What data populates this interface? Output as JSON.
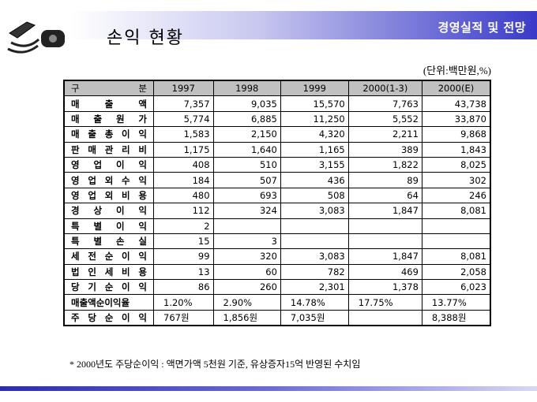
{
  "header": {
    "section": "경영실적 및 전망",
    "title": "손익 현황",
    "unit": "(단위:백만원,%)"
  },
  "table": {
    "header": [
      "구 분",
      "1997",
      "1998",
      "1999",
      "2000(1-3)",
      "2000(E)"
    ],
    "rows": [
      [
        "매 출 액",
        "7,357",
        "9,035",
        "15,570",
        "7,763",
        "43,738"
      ],
      [
        "매 출 원 가",
        "5,774",
        "6,885",
        "11,250",
        "5,552",
        "33,870"
      ],
      [
        "매 출 총 이 익",
        "1,583",
        "2,150",
        "4,320",
        "2,211",
        "9,868"
      ],
      [
        "판 매 관 리 비",
        "1,175",
        "1,640",
        "1,165",
        "389",
        "1,843"
      ],
      [
        "영 업 이 익",
        "408",
        "510",
        "3,155",
        "1,822",
        "8,025"
      ],
      [
        "영 업 외 수 익",
        "184",
        "507",
        "436",
        "89",
        "302"
      ],
      [
        "영 업 외 비 용",
        "480",
        "693",
        "508",
        "64",
        "246"
      ],
      [
        "경 상 이 익",
        "112",
        "324",
        "3,083",
        "1,847",
        "8,081"
      ],
      [
        "특 별 이 익",
        "2",
        null,
        null,
        null,
        null
      ],
      [
        "특 별 손 실",
        "15",
        "3",
        null,
        null,
        null
      ],
      [
        "세 전 순 이 익",
        "99",
        "320",
        "3,083",
        "1,847",
        "8,081"
      ],
      [
        "법 인 세 비 용",
        "13",
        "60",
        "782",
        "469",
        "2,058"
      ],
      [
        "당 기 순 이 익",
        "86",
        "260",
        "2,301",
        "1,378",
        "6,023"
      ],
      [
        "매출액순이익율",
        "1.20%",
        "2.90%",
        "14.78%",
        "17.75%",
        "13.77%"
      ],
      [
        "주 당 순 이 익",
        "767원",
        "1,856원",
        "7,035원",
        null,
        "8,388원"
      ]
    ]
  },
  "footnote": "* 2000년도 주당순이익 : 액면가액 5천원 기준, 유상증자15억 반영된 수치임"
}
